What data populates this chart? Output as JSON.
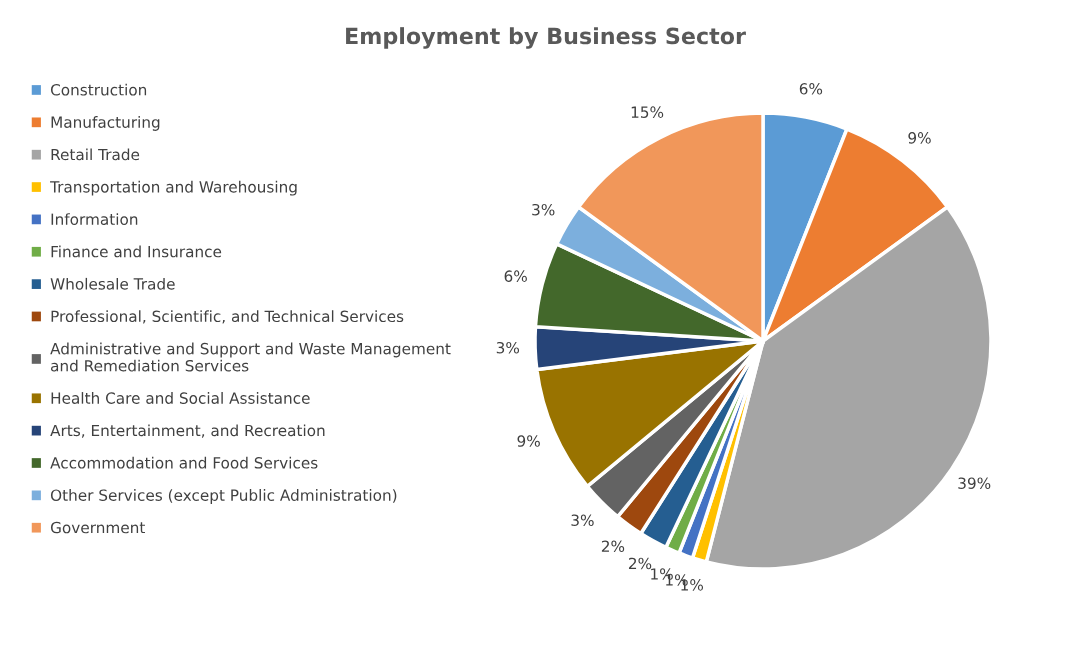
{
  "chart_data": {
    "type": "pie",
    "title": "Employment by Business Sector",
    "categories": [
      "Construction",
      "Manufacturing",
      "Retail Trade",
      "Transportation and Warehousing",
      "Information",
      "Finance and Insurance",
      "Wholesale Trade",
      "Professional, Scientific, and Technical Services",
      "Administrative and Support and Waste Management and Remediation Services",
      "Health Care and Social Assistance",
      "Arts, Entertainment, and Recreation",
      "Accommodation and Food Services",
      "Other Services (except Public Administration)",
      "Government"
    ],
    "values": [
      6,
      9,
      39,
      1,
      1,
      1,
      2,
      2,
      3,
      9,
      3,
      6,
      3,
      15
    ],
    "value_labels": [
      "6%",
      "9%",
      "39%",
      "1%",
      "1%",
      "1%",
      "2%",
      "2%",
      "3%",
      "9%",
      "3%",
      "6%",
      "3%",
      "15%"
    ],
    "colors": [
      "#5b9bd5",
      "#ed7d31",
      "#a5a5a5",
      "#ffc000",
      "#4472c4",
      "#70ad47",
      "#255e91",
      "#9e480e",
      "#636363",
      "#997300",
      "#264478",
      "#43682b",
      "#7cafdd",
      "#f1975a"
    ],
    "legend": "left"
  }
}
